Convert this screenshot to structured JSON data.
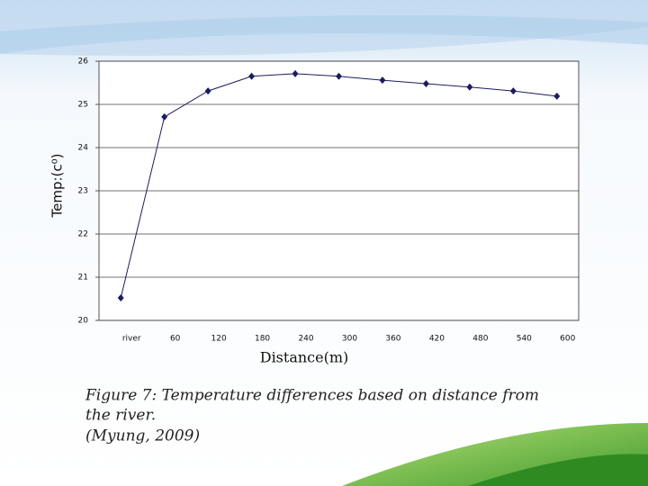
{
  "chart_data": {
    "type": "line",
    "y_label": "Temp:(c⁰)",
    "x_label": "Distance(m)",
    "categories": [
      "river",
      "60",
      "120",
      "180",
      "240",
      "300",
      "360",
      "420",
      "480",
      "540",
      "600"
    ],
    "values": [
      20.52,
      24.71,
      25.31,
      25.65,
      25.71,
      25.65,
      25.56,
      25.48,
      25.4,
      25.31,
      25.19
    ],
    "color": "#1c1c5e",
    "ylim": [
      20,
      26
    ],
    "yticks": [
      20,
      21,
      22,
      23,
      24,
      25,
      26
    ],
    "grid": true
  },
  "caption": {
    "line1": "Figure 7: Temperature differences based on distance from",
    "line2": "the river.",
    "line3": "(Myung, 2009)"
  }
}
